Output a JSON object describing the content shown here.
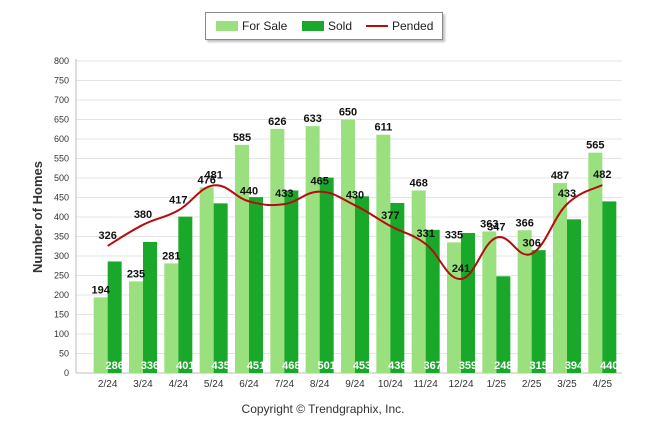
{
  "chart_data": {
    "type": "bar",
    "categories": [
      "2/24",
      "3/24",
      "4/24",
      "5/24",
      "6/24",
      "7/24",
      "8/24",
      "9/24",
      "10/24",
      "11/24",
      "12/24",
      "1/25",
      "2/25",
      "3/25",
      "4/25"
    ],
    "series": [
      {
        "name": "For Sale",
        "kind": "bar",
        "color": "#9ae07e",
        "values": [
          194,
          235,
          281,
          476,
          585,
          626,
          633,
          650,
          611,
          468,
          335,
          363,
          366,
          487,
          565
        ]
      },
      {
        "name": "Sold",
        "kind": "bar",
        "color": "#1aa82a",
        "values": [
          286,
          336,
          401,
          435,
          451,
          468,
          501,
          453,
          436,
          367,
          359,
          248,
          315,
          394,
          440
        ]
      },
      {
        "name": "Pended",
        "kind": "line",
        "color": "#b50d0d",
        "values": [
          326,
          380,
          417,
          481,
          440,
          433,
          465,
          430,
          377,
          331,
          241,
          347,
          306,
          433,
          482
        ]
      }
    ],
    "ylabel": "Number of Homes",
    "xlabel": "",
    "ylim": [
      0,
      800
    ],
    "yticks": [
      0,
      50,
      100,
      150,
      200,
      250,
      300,
      350,
      400,
      450,
      500,
      550,
      600,
      650,
      700,
      750,
      800
    ],
    "grid": true,
    "legend": "top-center"
  },
  "footer": "Copyright © Trendgraphix, Inc."
}
